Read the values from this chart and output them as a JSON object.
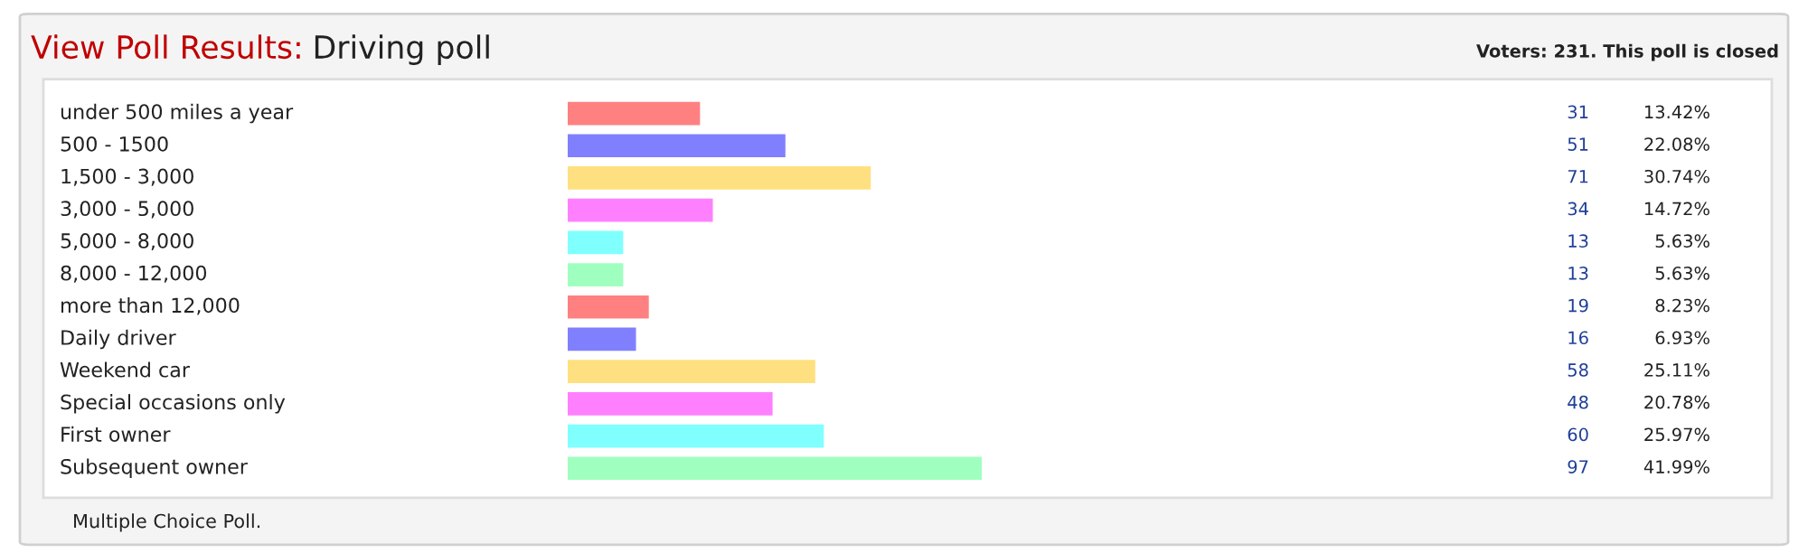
{
  "chart_data": {
    "type": "bar",
    "orientation": "horizontal",
    "title": "View Poll Results:",
    "subtitle": "Driving poll",
    "categories": [
      "under 500 miles a year",
      "500 - 1500",
      "1,500 - 3,000",
      "3,000 - 5,000",
      "5,000 - 8,000",
      "8,000 - 12,000",
      "more than 12,000",
      "Daily driver",
      "Weekend car",
      "Special occasions only",
      "First owner",
      "Subsequent owner"
    ],
    "values": [
      31,
      51,
      71,
      34,
      13,
      13,
      19,
      16,
      58,
      48,
      60,
      97
    ],
    "colors": [
      "#ff8080",
      "#8080ff",
      "#ffe080",
      "#ff80ff",
      "#80ffff",
      "#9fffbf",
      "#ff8080",
      "#8080ff",
      "#ffe080",
      "#ff80ff",
      "#80ffff",
      "#9fffbf"
    ],
    "data_labels": true,
    "xlim": [
      0,
      97
    ],
    "tick_labels": false,
    "grid": false,
    "legend": false,
    "annotations": [
      "Voters: 231. This poll is closed",
      "Multiple Choice Poll.",
      "13.42%",
      "22.08%",
      "30.74%",
      "14.72%",
      "5.63%",
      "5.63%",
      "8.23%",
      "6.93%",
      "25.11%",
      "20.78%",
      "25.97%",
      "41.99%"
    ]
  }
}
